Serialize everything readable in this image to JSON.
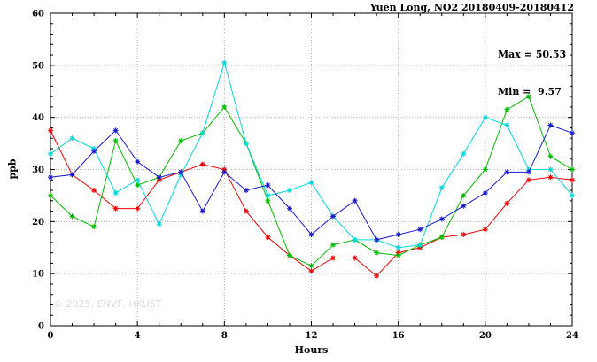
{
  "title": "Yuen Long, NO2 20180409-20180412",
  "annotations": {
    "max": "Max = 50.53",
    "min": "Min =  9.57"
  },
  "watermark": "© 2025, ENVF, HKUST",
  "chart_data": {
    "type": "line",
    "title": "Yuen Long, NO2 20180409-20180412",
    "xlabel": "Hours",
    "ylabel": "ppb",
    "xlim": [
      0,
      24
    ],
    "ylim": [
      0,
      60
    ],
    "x_ticks": [
      0,
      4,
      8,
      12,
      16,
      20,
      24
    ],
    "y_ticks": [
      0,
      10,
      20,
      30,
      40,
      50,
      60
    ],
    "x_minor_step": 1,
    "y_minor_step": 2,
    "grid": true,
    "legend": "none",
    "marker": "asterisk",
    "max_value": 50.53,
    "min_value": 9.57,
    "x": [
      0,
      1,
      2,
      3,
      4,
      5,
      6,
      7,
      8,
      9,
      10,
      11,
      12,
      13,
      14,
      15,
      16,
      17,
      18,
      19,
      20,
      21,
      22,
      23,
      24
    ],
    "series": [
      {
        "name": "series-red",
        "color": "#ee0000",
        "values": [
          37.5,
          29,
          26,
          22.5,
          22.5,
          28,
          29.5,
          31,
          30,
          22,
          17,
          13.5,
          10.5,
          13,
          13,
          9.57,
          14,
          15,
          17,
          17.5,
          18.5,
          23.5,
          28,
          28.5,
          28
        ]
      },
      {
        "name": "series-green",
        "color": "#00bb00",
        "values": [
          25,
          21,
          19,
          35.5,
          27,
          28.5,
          35.5,
          37,
          42,
          35,
          24,
          13.5,
          11.5,
          15.5,
          16.5,
          14,
          13.5,
          15.5,
          17,
          25,
          30,
          41.5,
          44,
          32.5,
          30
        ]
      },
      {
        "name": "series-cyan",
        "color": "#00d8d8",
        "values": [
          33,
          36,
          34,
          25.5,
          28,
          19.5,
          29,
          37,
          50.53,
          35,
          25,
          26,
          27.5,
          21,
          16.5,
          16.5,
          15,
          15.5,
          26.5,
          33,
          40,
          38.5,
          30,
          30,
          25
        ]
      },
      {
        "name": "series-blue",
        "color": "#1818cc",
        "values": [
          28.5,
          29,
          33.5,
          37.5,
          31.5,
          28.5,
          29.5,
          22,
          29.5,
          26,
          27,
          22.5,
          17.5,
          21,
          24,
          16.5,
          17.5,
          18.5,
          20.5,
          23,
          25.5,
          29.5,
          29.5,
          38.5,
          37
        ]
      }
    ]
  }
}
